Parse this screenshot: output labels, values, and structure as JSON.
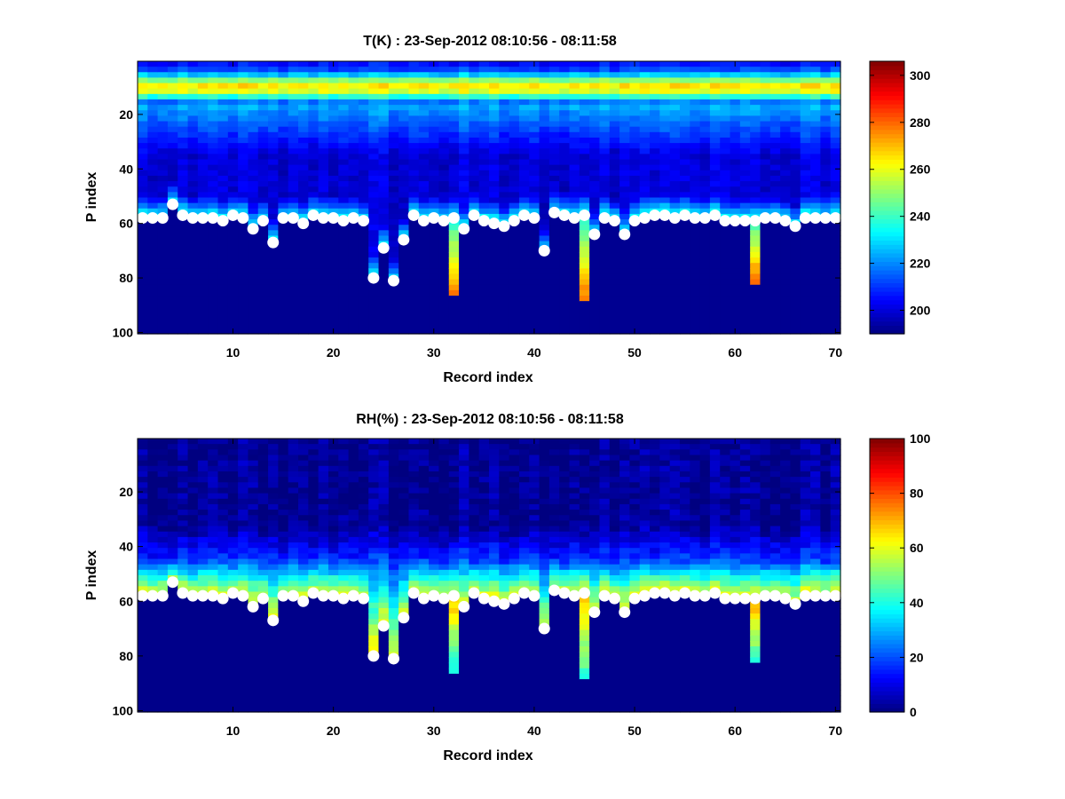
{
  "chart_data": [
    {
      "type": "heatmap",
      "title": "T(K) : 23-Sep-2012 08:10:56 - 08:11:58",
      "xlabel": "Record index",
      "ylabel": "P index",
      "xlim": [
        0.5,
        70.5
      ],
      "ylim": [
        100.5,
        0.5
      ],
      "x_ticks": [
        10,
        20,
        30,
        40,
        50,
        60,
        70
      ],
      "y_ticks": [
        20,
        40,
        60,
        80,
        100
      ],
      "colorbar": {
        "label": "T(K)",
        "min": 190,
        "max": 306,
        "ticks": [
          200,
          220,
          240,
          260,
          280,
          300
        ],
        "colormap": "jet"
      },
      "variable": "temperature",
      "field_profile": "cold ~195-205 K below the warm band near P index 10 (~255-265 K); values warm toward the white surface markers (~240 K at surface)",
      "surface_markers": {
        "records": [
          1,
          2,
          3,
          4,
          5,
          6,
          7,
          8,
          9,
          10,
          11,
          12,
          13,
          14,
          15,
          16,
          17,
          18,
          19,
          20,
          21,
          22,
          23,
          24,
          25,
          26,
          27,
          28,
          29,
          30,
          31,
          32,
          33,
          34,
          35,
          36,
          37,
          38,
          39,
          40,
          41,
          42,
          43,
          44,
          45,
          46,
          47,
          48,
          49,
          50,
          51,
          52,
          53,
          54,
          55,
          56,
          57,
          58,
          59,
          60,
          61,
          62,
          63,
          64,
          65,
          66,
          67,
          68,
          69,
          70
        ],
        "p_index": [
          58,
          58,
          58,
          53,
          57,
          58,
          58,
          58,
          59,
          57,
          58,
          62,
          59,
          67,
          58,
          58,
          60,
          57,
          58,
          58,
          59,
          58,
          59,
          80,
          69,
          81,
          66,
          57,
          59,
          58,
          59,
          58,
          62,
          57,
          59,
          60,
          61,
          59,
          57,
          58,
          70,
          56,
          57,
          58,
          57,
          64,
          58,
          59,
          64,
          59,
          58,
          57,
          57,
          58,
          57,
          58,
          58,
          57,
          59,
          59,
          59,
          59,
          58,
          58,
          59,
          61,
          58,
          58,
          58,
          58
        ]
      },
      "extensions": [
        {
          "record": 24,
          "from": 58,
          "to": 80
        },
        {
          "record": 26,
          "from": 58,
          "to": 81
        },
        {
          "record": 32,
          "from": 58,
          "to": 86
        },
        {
          "record": 45,
          "from": 57,
          "to": 89
        },
        {
          "record": 62,
          "from": 59,
          "to": 82
        }
      ]
    },
    {
      "type": "heatmap",
      "title": "RH(%) : 23-Sep-2012 08:10:56 - 08:11:58",
      "xlabel": "Record index",
      "ylabel": "P index",
      "xlim": [
        0.5,
        70.5
      ],
      "ylim": [
        100.5,
        0.5
      ],
      "x_ticks": [
        10,
        20,
        30,
        40,
        50,
        60,
        70
      ],
      "y_ticks": [
        20,
        40,
        60,
        80,
        100
      ],
      "colorbar": {
        "label": "RH(%)",
        "min": 0,
        "max": 100,
        "ticks": [
          0,
          20,
          40,
          60,
          80,
          100
        ],
        "colormap": "jet"
      },
      "variable": "humidity",
      "field_profile": "near 0-5% above P index ~35; rising to ~60% just above the surface markers; ~65-75% in the extended columns",
      "surface_markers": {
        "records": [
          1,
          2,
          3,
          4,
          5,
          6,
          7,
          8,
          9,
          10,
          11,
          12,
          13,
          14,
          15,
          16,
          17,
          18,
          19,
          20,
          21,
          22,
          23,
          24,
          25,
          26,
          27,
          28,
          29,
          30,
          31,
          32,
          33,
          34,
          35,
          36,
          37,
          38,
          39,
          40,
          41,
          42,
          43,
          44,
          45,
          46,
          47,
          48,
          49,
          50,
          51,
          52,
          53,
          54,
          55,
          56,
          57,
          58,
          59,
          60,
          61,
          62,
          63,
          64,
          65,
          66,
          67,
          68,
          69,
          70
        ],
        "p_index": [
          58,
          58,
          58,
          53,
          57,
          58,
          58,
          58,
          59,
          57,
          58,
          62,
          59,
          67,
          58,
          58,
          60,
          57,
          58,
          58,
          59,
          58,
          59,
          80,
          69,
          81,
          66,
          57,
          59,
          58,
          59,
          58,
          62,
          57,
          59,
          60,
          61,
          59,
          57,
          58,
          70,
          56,
          57,
          58,
          57,
          64,
          58,
          59,
          64,
          59,
          58,
          57,
          57,
          58,
          57,
          58,
          58,
          57,
          59,
          59,
          59,
          59,
          58,
          58,
          59,
          61,
          58,
          58,
          58,
          58
        ]
      },
      "extensions": [
        {
          "record": 24,
          "from": 58,
          "to": 80
        },
        {
          "record": 26,
          "from": 58,
          "to": 81
        },
        {
          "record": 32,
          "from": 58,
          "to": 86
        },
        {
          "record": 45,
          "from": 57,
          "to": 89
        },
        {
          "record": 62,
          "from": 59,
          "to": 82
        }
      ]
    }
  ]
}
